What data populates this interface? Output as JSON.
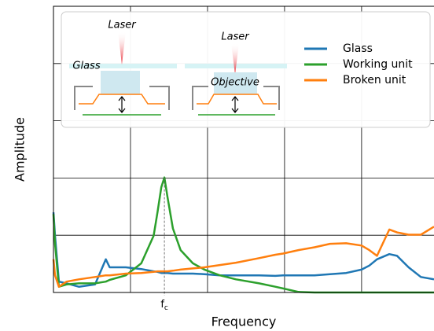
{
  "chart_data": {
    "type": "line",
    "xlabel": "Frequency",
    "ylabel": "Amplitude",
    "x": [
      0,
      0.02,
      0.07,
      0.17,
      0.33,
      0.54,
      0.68,
      0.73,
      0.94,
      1.14,
      1.3,
      1.35,
      1.4,
      1.44,
      1.48,
      1.55,
      1.65,
      1.81,
      1.96,
      2.16,
      2.37,
      2.67,
      2.88,
      2.98,
      3.18,
      3.39,
      3.59,
      3.8,
      4,
      4.1,
      4.2,
      4.36,
      4.46,
      4.61,
      4.77,
      4.94
    ],
    "series": [
      {
        "name": "Glass",
        "color": "#1f77b4",
        "values": [
          1.4,
          0.99,
          0.19,
          0.16,
          0.1,
          0.14,
          0.58,
          0.44,
          0.44,
          0.41,
          0.37,
          0.36,
          0.34,
          0.34,
          0.34,
          0.33,
          0.33,
          0.33,
          0.32,
          0.3,
          0.3,
          0.3,
          0.29,
          0.3,
          0.3,
          0.3,
          0.32,
          0.34,
          0.4,
          0.47,
          0.58,
          0.67,
          0.64,
          0.44,
          0.27,
          0.23
        ]
      },
      {
        "name": "Working unit",
        "color": "#2ca02c",
        "values": [
          1.37,
          0.85,
          0.1,
          0.14,
          0.16,
          0.16,
          0.19,
          0.22,
          0.3,
          0.51,
          0.99,
          1.4,
          1.84,
          2.01,
          1.67,
          1.12,
          0.74,
          0.51,
          0.4,
          0.3,
          0.23,
          0.16,
          0.1,
          0.07,
          0.01,
          0,
          0,
          0,
          0,
          0,
          0,
          0,
          0,
          0,
          0,
          0
        ]
      },
      {
        "name": "Broken unit",
        "color": "#ff7f0e",
        "values": [
          0.58,
          0.3,
          0.1,
          0.19,
          0.23,
          0.27,
          0.3,
          0.3,
          0.33,
          0.34,
          0.36,
          0.37,
          0.37,
          0.37,
          0.37,
          0.38,
          0.4,
          0.42,
          0.44,
          0.48,
          0.52,
          0.6,
          0.66,
          0.68,
          0.74,
          0.79,
          0.85,
          0.86,
          0.82,
          0.74,
          0.64,
          1.1,
          1.05,
          1.01,
          1.01,
          1.15
        ]
      }
    ],
    "xlim": [
      0,
      4.94
    ],
    "ylim": [
      0,
      5
    ],
    "xticks": [
      1,
      2,
      3,
      4
    ],
    "yticks": [
      1,
      2,
      3,
      4
    ],
    "grid": true,
    "annotation": {
      "text": "f",
      "subscript": "c",
      "x": 1.44
    },
    "inset_labels": [
      "Laser",
      "Glass",
      "Laser",
      "Objective"
    ]
  }
}
